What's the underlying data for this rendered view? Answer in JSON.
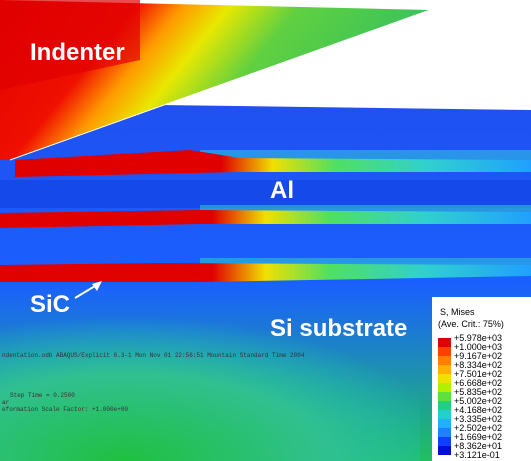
{
  "labels": {
    "indenter": "Indenter",
    "al": "Al",
    "sic": "SiC",
    "substrate": "Si substrate"
  },
  "legend": {
    "title": "S, Mises",
    "subtitle": "(Ave. Crit.: 75%)",
    "levels": [
      "+5.978e+03",
      "+1.000e+03",
      "+9.167e+02",
      "+8.334e+02",
      "+7.501e+02",
      "+6.668e+02",
      "+5.835e+02",
      "+5.002e+02",
      "+4.168e+02",
      "+3.335e+02",
      "+2.502e+02",
      "+1.669e+02",
      "+8.362e+01",
      "+3.121e-01"
    ]
  },
  "footer": {
    "file": "ndentation.odb    ABAQUS/Explicit 6.3-1    Mon Nov 01 22:56:51 Mountain Standard Time 2004",
    "step": "Step Time =    0.2500",
    "var": "ar",
    "scale": "eformation Scale Factor: +1.000e+00"
  }
}
